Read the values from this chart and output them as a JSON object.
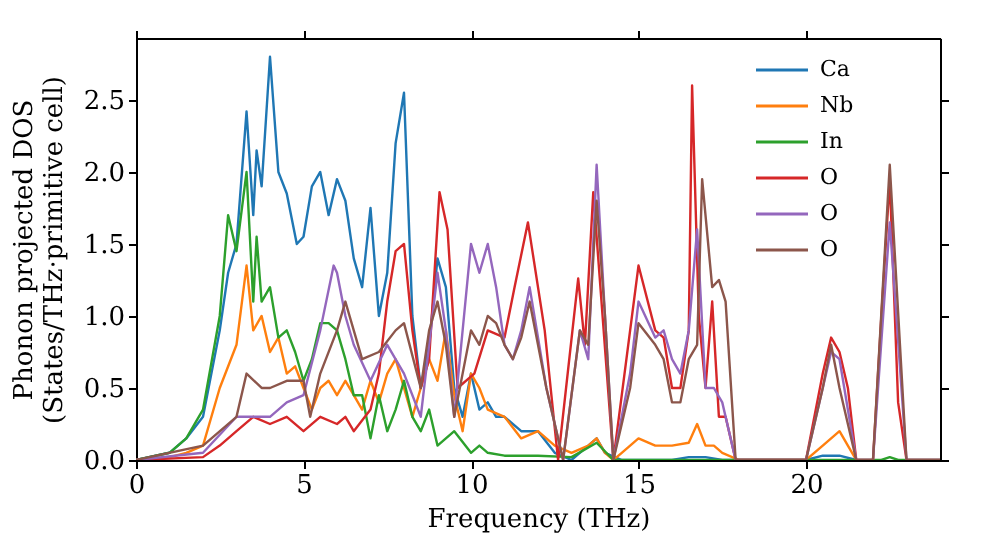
{
  "chart_data": {
    "type": "line",
    "xlabel": "Frequency (THz)",
    "ylabel": "Phonon projected DOS\n(States/THz·primitive cell)",
    "xlim": [
      0,
      24
    ],
    "ylim": [
      0,
      2.93
    ],
    "xticks": [
      0,
      5,
      10,
      15,
      20
    ],
    "yticks": [
      {
        "value": 0,
        "label": "0.0"
      },
      0.5,
      {
        "value": 1,
        "label": "1.0"
      },
      1.5,
      {
        "value": 2,
        "label": "2.0"
      },
      2.5
    ],
    "grid": false,
    "legend": "top right",
    "line_style": "solid",
    "marker": "none",
    "series": [
      {
        "name": "Ca",
        "color": "#1f77b4",
        "x": [
          0,
          1,
          1.5,
          2,
          2.5,
          2.75,
          3,
          3.3,
          3.5,
          3.6,
          3.75,
          4,
          4.25,
          4.5,
          4.8,
          5,
          5.25,
          5.5,
          5.75,
          6,
          6.25,
          6.5,
          6.75,
          7,
          7.25,
          7.5,
          7.75,
          8,
          8.25,
          8.5,
          8.75,
          9,
          9.25,
          9.5,
          9.75,
          10,
          10.25,
          10.5,
          10.75,
          11,
          11.5,
          12,
          12.5,
          13,
          13.5,
          13.75,
          14,
          14.5,
          16,
          16.5,
          17,
          17.5,
          20,
          20.5,
          21,
          21.5
        ],
        "values": [
          0,
          0.05,
          0.15,
          0.3,
          0.9,
          1.3,
          1.5,
          2.42,
          1.7,
          2.15,
          1.9,
          2.8,
          2.0,
          1.85,
          1.5,
          1.55,
          1.9,
          2.0,
          1.7,
          1.95,
          1.8,
          1.4,
          1.2,
          1.75,
          1.0,
          1.3,
          2.2,
          2.55,
          1.0,
          0.5,
          0.8,
          1.4,
          1.2,
          0.5,
          0.3,
          0.6,
          0.35,
          0.4,
          0.3,
          0.3,
          0.2,
          0.2,
          0.05,
          0,
          0.1,
          0.15,
          0.05,
          0,
          0,
          0.02,
          0.02,
          0,
          0,
          0.03,
          0.03,
          0
        ]
      },
      {
        "name": "Nb",
        "color": "#ff7f0e",
        "x": [
          0,
          1,
          1.5,
          2,
          2.5,
          3,
          3.3,
          3.5,
          3.75,
          4,
          4.25,
          4.5,
          4.75,
          5,
          5.25,
          5.5,
          5.75,
          6,
          6.25,
          6.5,
          6.75,
          7,
          7.25,
          7.5,
          7.75,
          8,
          8.25,
          8.5,
          8.75,
          9,
          9.25,
          9.5,
          9.75,
          10,
          10.25,
          10.5,
          11,
          11.5,
          12,
          12.5,
          13,
          13.5,
          13.75,
          14,
          14.25,
          14.5,
          15,
          15.5,
          16,
          16.5,
          16.75,
          17,
          17.25,
          17.5,
          18,
          20,
          20.5,
          21,
          21.25,
          21.5
        ],
        "values": [
          0,
          0.02,
          0.05,
          0.1,
          0.5,
          0.8,
          1.35,
          0.9,
          1.0,
          0.75,
          0.85,
          0.6,
          0.65,
          0.5,
          0.35,
          0.5,
          0.55,
          0.45,
          0.55,
          0.45,
          0.35,
          0.55,
          0.4,
          0.6,
          0.7,
          0.5,
          0.3,
          0.5,
          0.7,
          0.55,
          0.9,
          0.45,
          0.2,
          0.6,
          0.5,
          0.35,
          0.3,
          0.15,
          0.2,
          0.1,
          0.05,
          0.1,
          0.15,
          0.05,
          0,
          0.05,
          0.15,
          0.1,
          0.1,
          0.12,
          0.25,
          0.1,
          0.1,
          0.05,
          0,
          0,
          0.1,
          0.2,
          0.1,
          0
        ]
      },
      {
        "name": "In",
        "color": "#2ca02c",
        "x": [
          0,
          1,
          1.5,
          2,
          2.5,
          2.75,
          3,
          3.3,
          3.5,
          3.6,
          3.75,
          4,
          4.25,
          4.5,
          4.75,
          5,
          5.25,
          5.5,
          5.75,
          6,
          6.25,
          6.5,
          6.75,
          7,
          7.25,
          7.5,
          7.75,
          8,
          8.25,
          8.5,
          8.75,
          9,
          9.5,
          10,
          10.25,
          10.5,
          11,
          12,
          13,
          13.75,
          14.25,
          20,
          22.25,
          22.5,
          22.75,
          24
        ],
        "values": [
          0,
          0.05,
          0.15,
          0.35,
          1.0,
          1.7,
          1.45,
          2.0,
          1.1,
          1.55,
          1.1,
          1.2,
          0.85,
          0.9,
          0.75,
          0.55,
          0.7,
          0.95,
          0.95,
          0.9,
          0.7,
          0.45,
          0.45,
          0.15,
          0.45,
          0.2,
          0.35,
          0.55,
          0.3,
          0.2,
          0.35,
          0.1,
          0.2,
          0.05,
          0.1,
          0.05,
          0.03,
          0.03,
          0.02,
          0.12,
          0,
          0,
          0,
          0.02,
          0,
          0
        ]
      },
      {
        "name": "O",
        "color": "#d62728",
        "x": [
          0,
          2,
          2.5,
          3,
          3.5,
          4,
          4.5,
          5,
          5.5,
          6,
          6.25,
          6.5,
          7,
          7.25,
          7.5,
          7.75,
          8,
          8.25,
          8.5,
          8.75,
          9.06,
          9.3,
          9.6,
          10.1,
          10.5,
          11,
          11.3,
          11.7,
          12.2,
          12.6,
          13.2,
          13.4,
          13.65,
          14.25,
          15,
          15.5,
          15.75,
          16,
          16.25,
          16.5,
          16.6,
          16.8,
          17,
          17.2,
          17.4,
          17.6,
          17.9,
          20,
          20.5,
          20.75,
          21,
          21.25,
          21.5,
          22,
          22.25,
          22.5,
          22.75,
          23,
          24
        ],
        "values": [
          0,
          0.02,
          0.1,
          0.2,
          0.3,
          0.25,
          0.3,
          0.2,
          0.3,
          0.25,
          0.3,
          0.2,
          0.35,
          0.6,
          1.1,
          1.45,
          1.5,
          0.9,
          0.5,
          0.7,
          1.86,
          1.6,
          0.5,
          0.6,
          0.9,
          0.85,
          1.2,
          1.65,
          0.9,
          0,
          1.26,
          0.8,
          1.86,
          0,
          1.35,
          0.9,
          0.85,
          0.5,
          0.5,
          0.9,
          2.6,
          1.0,
          0.5,
          1.1,
          0.3,
          0.3,
          0,
          0,
          0.6,
          0.85,
          0.75,
          0.5,
          0,
          0,
          1.0,
          1.95,
          0.4,
          0,
          0
        ]
      },
      {
        "name": "O",
        "color": "#9467bd",
        "x": [
          0,
          2,
          3,
          4,
          4.5,
          5,
          5.5,
          5.9,
          6,
          6.25,
          6.5,
          7,
          7.5,
          8,
          8.5,
          8.75,
          9,
          9.25,
          9.5,
          10,
          10.25,
          10.5,
          10.75,
          11,
          11.25,
          11.5,
          11.75,
          12.25,
          12.75,
          13.25,
          13.5,
          13.75,
          14,
          14.25,
          14.75,
          15,
          15.5,
          15.75,
          16,
          16.25,
          16.5,
          16.75,
          17,
          17.25,
          17.5,
          17.9,
          20,
          20.5,
          20.75,
          21,
          21.5,
          22,
          22.5,
          23,
          24
        ],
        "values": [
          0,
          0.05,
          0.3,
          0.3,
          0.4,
          0.45,
          0.9,
          1.35,
          1.3,
          1.0,
          0.8,
          0.55,
          0.8,
          0.6,
          0.3,
          0.8,
          1.3,
          0.9,
          0.3,
          1.5,
          1.3,
          1.5,
          1.2,
          0.8,
          0.7,
          0.9,
          1.2,
          0.5,
          0,
          0.9,
          0.7,
          2.05,
          1.0,
          0,
          0.6,
          1.1,
          0.85,
          0.9,
          0.7,
          0.6,
          0.9,
          1.6,
          0.5,
          0.5,
          0.4,
          0,
          0,
          0.5,
          0.75,
          0.7,
          0,
          0,
          1.65,
          0,
          0
        ]
      },
      {
        "name": "O",
        "color": "#8c564b",
        "x": [
          0,
          2,
          3,
          3.3,
          3.75,
          4,
          4.5,
          5,
          5.2,
          5.5,
          6,
          6.25,
          6.5,
          6.75,
          7.25,
          7.75,
          8,
          8.5,
          8.75,
          9,
          9.25,
          9.5,
          10,
          10.25,
          10.5,
          10.75,
          11,
          11.25,
          11.5,
          11.75,
          12.25,
          12.75,
          13.25,
          13.5,
          13.75,
          14,
          14.25,
          14.75,
          15,
          15.5,
          15.75,
          16,
          16.25,
          16.5,
          16.75,
          16.9,
          17.2,
          17.4,
          17.6,
          17.9,
          20,
          20.5,
          20.75,
          21,
          21.5,
          22,
          22.5,
          23,
          24
        ],
        "values": [
          0,
          0.1,
          0.3,
          0.6,
          0.5,
          0.5,
          0.55,
          0.55,
          0.3,
          0.6,
          0.9,
          1.1,
          0.9,
          0.7,
          0.75,
          0.9,
          0.95,
          0.5,
          0.9,
          1.1,
          0.8,
          0.3,
          0.9,
          0.8,
          1.0,
          0.95,
          0.8,
          0.7,
          0.85,
          1.1,
          0.5,
          0,
          0.9,
          0.8,
          1.8,
          1.0,
          0,
          0.5,
          0.95,
          0.8,
          0.7,
          0.4,
          0.4,
          0.7,
          0.8,
          1.95,
          1.2,
          1.25,
          1.1,
          0,
          0,
          0.5,
          0.8,
          0.5,
          0,
          0,
          2.05,
          0,
          0
        ]
      }
    ]
  }
}
